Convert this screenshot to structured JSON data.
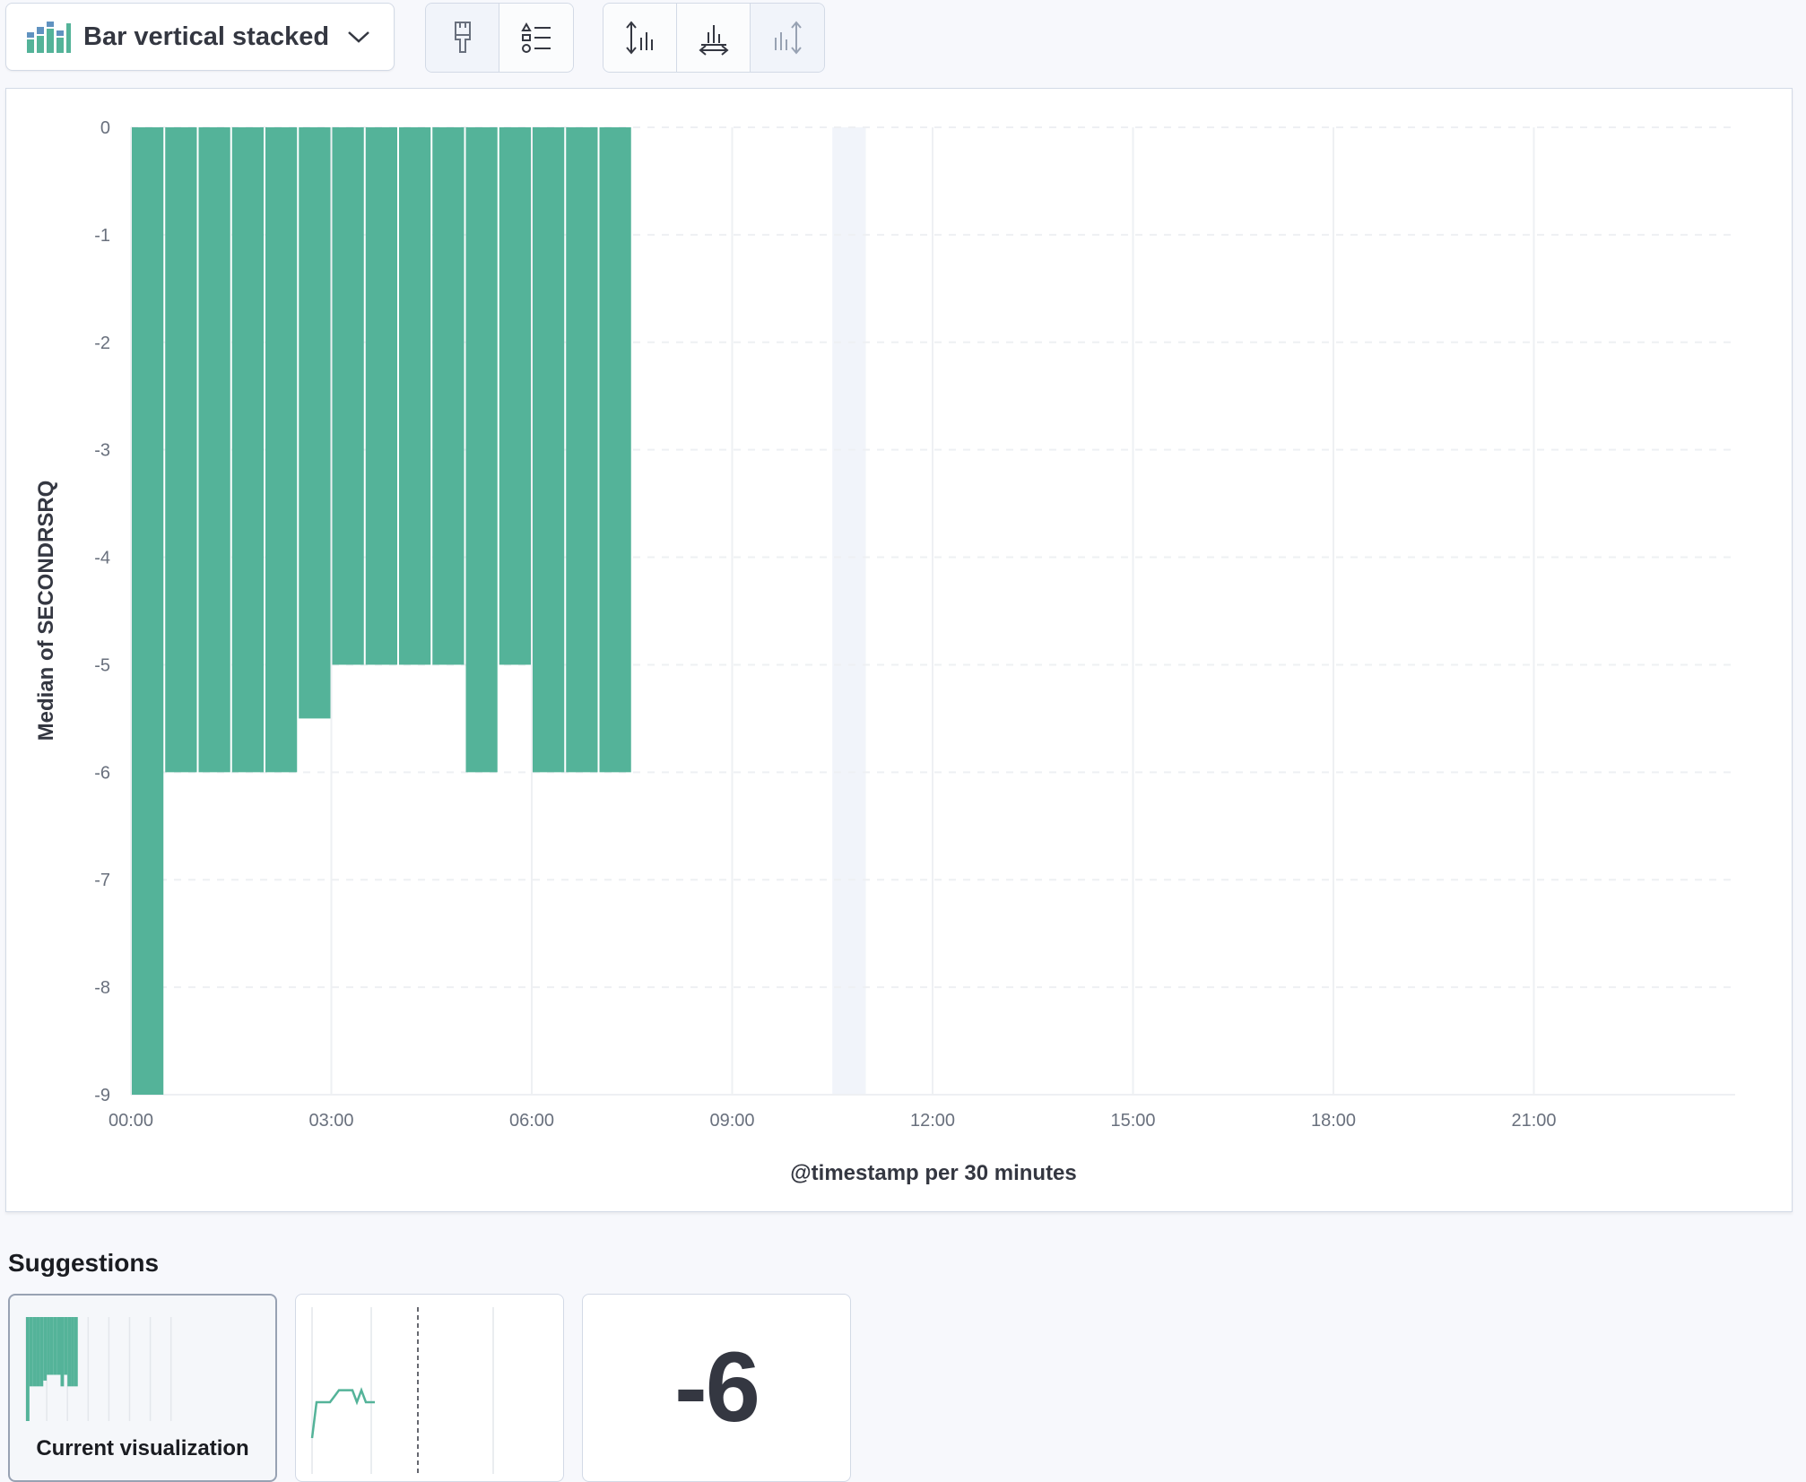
{
  "toolbar": {
    "chart_type_label": "Bar vertical stacked",
    "chart_type_icon": "bar-stacked-icon",
    "buttons": [
      {
        "icon": "paintbrush-icon"
      },
      {
        "icon": "legend-icon"
      },
      {
        "icon": "left-axis-icon"
      },
      {
        "icon": "bottom-axis-icon"
      },
      {
        "icon": "right-axis-icon"
      }
    ]
  },
  "colors": {
    "bar": "#54b399",
    "grid": "#eef0f3",
    "text": "#343741"
  },
  "chart_data": {
    "type": "bar",
    "stacked": true,
    "xlabel": "@timestamp per 30 minutes",
    "ylabel": "Median of SECONDRSRQ",
    "ylim": [
      -9,
      0
    ],
    "y_ticks": [
      "0",
      "-1",
      "-2",
      "-3",
      "-4",
      "-5",
      "-6",
      "-7",
      "-8",
      "-9"
    ],
    "x_ticks": [
      "00:00",
      "03:00",
      "06:00",
      "09:00",
      "12:00",
      "15:00",
      "18:00",
      "21:00"
    ],
    "grid": true,
    "x": [
      "00:00",
      "00:30",
      "01:00",
      "01:30",
      "02:00",
      "02:30",
      "03:00",
      "03:30",
      "04:00",
      "04:30",
      "05:00",
      "05:30",
      "06:00",
      "06:30",
      "07:00"
    ],
    "values": [
      -9,
      -6,
      -6,
      -6,
      -6,
      -5.5,
      -5,
      -5,
      -5,
      -5,
      -6,
      -5,
      -6,
      -6,
      -6
    ],
    "highlight_bucket": "10:30"
  },
  "suggestions": {
    "title": "Suggestions",
    "current_label": "Current visualization",
    "metric_value": "-6"
  }
}
